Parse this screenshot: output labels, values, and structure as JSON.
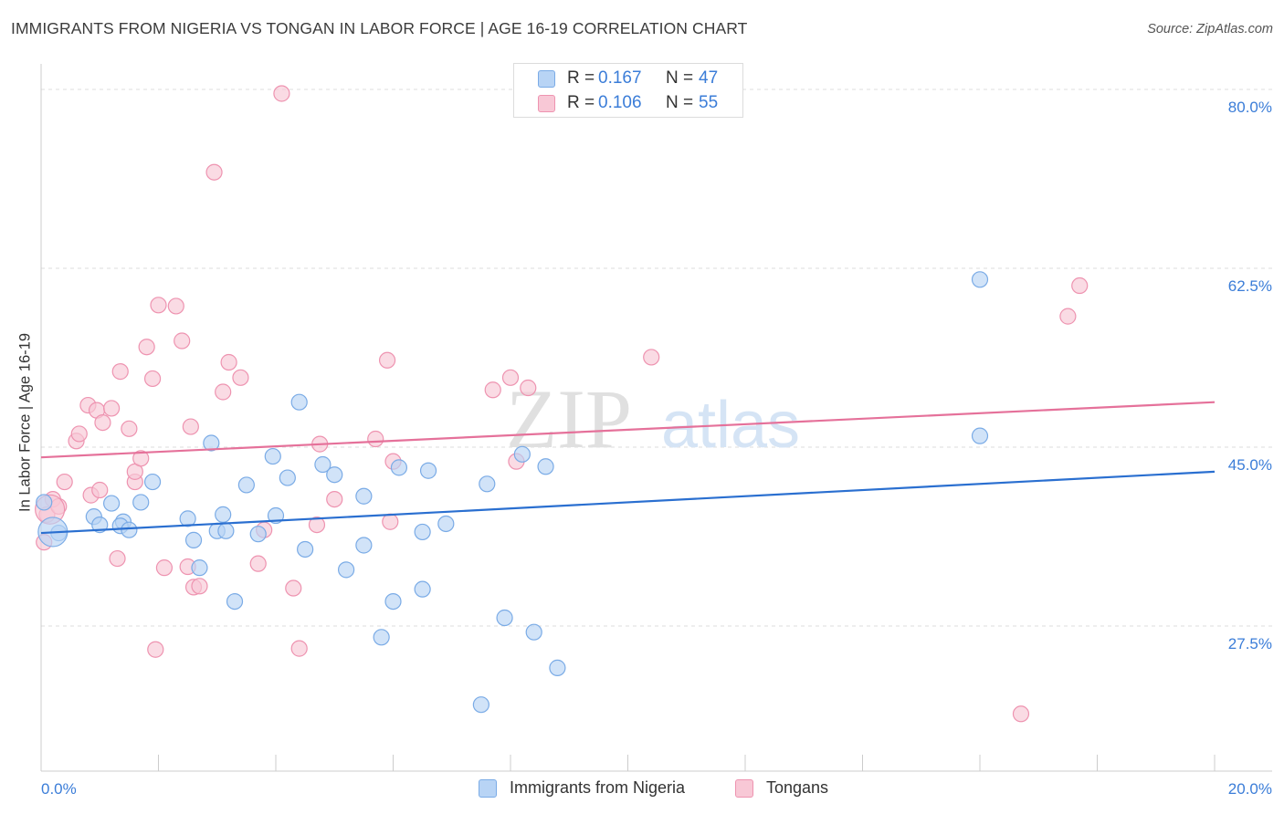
{
  "header": {
    "title": "IMMIGRANTS FROM NIGERIA VS TONGAN IN LABOR FORCE | AGE 16-19 CORRELATION CHART",
    "source": "Source: ZipAtlas.com"
  },
  "watermark": {
    "zip": "ZIP",
    "atlas": "atlas"
  },
  "legend": {
    "rows": [
      {
        "r_label": "R =",
        "r_value": "0.167",
        "n_label": "N =",
        "n_value": "47"
      },
      {
        "r_label": "R =",
        "r_value": "0.106",
        "n_label": "N =",
        "n_value": "55"
      }
    ]
  },
  "colors": {
    "blue_fill": "#b8d4f5",
    "blue_stroke": "#7aabe6",
    "blue_line": "#2a6fd0",
    "pink_fill": "#f8c8d6",
    "pink_stroke": "#ee93b0",
    "pink_line": "#e5719a",
    "tick_label": "#3b7dd8",
    "grid": "#dddddd"
  },
  "chart_data": {
    "type": "scatter",
    "title": "IMMIGRANTS FROM NIGERIA VS TONGAN IN LABOR FORCE | AGE 16-19 CORRELATION CHART",
    "xlabel": "",
    "ylabel": "In Labor Force | Age 16-19",
    "xlim": [
      0,
      20
    ],
    "ylim": [
      13.3,
      82.5
    ],
    "x_tick_labels": [
      "0.0%",
      "20.0%"
    ],
    "x_tick_values": [
      0,
      20
    ],
    "y_tick_labels": [
      "80.0%",
      "62.5%",
      "45.0%",
      "27.5%"
    ],
    "y_tick_values": [
      80.0,
      62.5,
      45.0,
      27.5
    ],
    "grid": "horizontal dashed",
    "legend_position": "top-center",
    "series": [
      {
        "name": "Immigrants from Nigeria",
        "color": "#b8d4f5",
        "r": 0.167,
        "n": 47,
        "trend": {
          "x": [
            0,
            20
          ],
          "y": [
            36.6,
            42.6
          ]
        },
        "points": [
          [
            0.05,
            39.6
          ],
          [
            0.3,
            36.6
          ],
          [
            0.9,
            38.2
          ],
          [
            1.0,
            37.4
          ],
          [
            1.4,
            37.7
          ],
          [
            1.2,
            39.5
          ],
          [
            1.35,
            37.3
          ],
          [
            1.5,
            36.9
          ],
          [
            1.7,
            39.6
          ],
          [
            1.9,
            41.6
          ],
          [
            2.5,
            38.0
          ],
          [
            2.9,
            45.4
          ],
          [
            2.6,
            35.9
          ],
          [
            2.7,
            33.2
          ],
          [
            3.1,
            38.4
          ],
          [
            3.0,
            36.8
          ],
          [
            3.15,
            36.8
          ],
          [
            3.3,
            29.9
          ],
          [
            3.5,
            41.3
          ],
          [
            3.7,
            36.5
          ],
          [
            3.95,
            44.1
          ],
          [
            4.0,
            38.3
          ],
          [
            4.2,
            42.0
          ],
          [
            4.4,
            49.4
          ],
          [
            4.5,
            35.0
          ],
          [
            4.8,
            43.3
          ],
          [
            5.0,
            42.3
          ],
          [
            5.2,
            33.0
          ],
          [
            5.5,
            35.4
          ],
          [
            5.5,
            40.2
          ],
          [
            5.8,
            26.4
          ],
          [
            6.0,
            29.9
          ],
          [
            6.1,
            43.0
          ],
          [
            6.5,
            31.1
          ],
          [
            6.5,
            36.7
          ],
          [
            6.6,
            42.7
          ],
          [
            6.9,
            37.5
          ],
          [
            7.5,
            19.8
          ],
          [
            7.6,
            41.4
          ],
          [
            7.9,
            28.3
          ],
          [
            8.2,
            44.3
          ],
          [
            8.4,
            26.9
          ],
          [
            8.6,
            43.1
          ],
          [
            8.8,
            23.4
          ],
          [
            16.0,
            46.1
          ],
          [
            16.0,
            61.4
          ],
          [
            0.2,
            36.7
          ]
        ]
      },
      {
        "name": "Tongans",
        "color": "#f8c8d6",
        "r": 0.106,
        "n": 55,
        "trend": {
          "x": [
            0,
            20
          ],
          "y": [
            44.0,
            49.4
          ]
        },
        "points": [
          [
            0.05,
            35.7
          ],
          [
            0.1,
            38.4
          ],
          [
            0.2,
            39.9
          ],
          [
            0.3,
            39.2
          ],
          [
            0.4,
            41.6
          ],
          [
            0.6,
            45.6
          ],
          [
            0.65,
            46.3
          ],
          [
            0.8,
            49.1
          ],
          [
            0.85,
            40.3
          ],
          [
            0.95,
            48.6
          ],
          [
            1.0,
            40.8
          ],
          [
            1.05,
            47.4
          ],
          [
            1.2,
            48.8
          ],
          [
            1.3,
            34.1
          ],
          [
            1.35,
            52.4
          ],
          [
            1.5,
            46.8
          ],
          [
            1.6,
            41.6
          ],
          [
            1.6,
            42.6
          ],
          [
            1.7,
            43.9
          ],
          [
            1.8,
            54.8
          ],
          [
            1.9,
            51.7
          ],
          [
            1.95,
            25.2
          ],
          [
            2.0,
            58.9
          ],
          [
            2.1,
            33.2
          ],
          [
            2.3,
            58.8
          ],
          [
            2.4,
            55.4
          ],
          [
            2.5,
            33.3
          ],
          [
            2.55,
            47.0
          ],
          [
            2.6,
            31.3
          ],
          [
            2.7,
            31.4
          ],
          [
            2.95,
            71.9
          ],
          [
            3.1,
            50.4
          ],
          [
            3.2,
            53.3
          ],
          [
            3.4,
            51.8
          ],
          [
            3.7,
            33.6
          ],
          [
            3.8,
            36.9
          ],
          [
            4.1,
            79.6
          ],
          [
            4.3,
            31.2
          ],
          [
            4.4,
            25.3
          ],
          [
            4.7,
            37.4
          ],
          [
            4.75,
            45.3
          ],
          [
            5.0,
            39.9
          ],
          [
            5.7,
            45.8
          ],
          [
            5.9,
            53.5
          ],
          [
            5.95,
            37.7
          ],
          [
            6.0,
            43.6
          ],
          [
            7.7,
            50.6
          ],
          [
            8.0,
            51.8
          ],
          [
            8.1,
            43.6
          ],
          [
            8.3,
            50.8
          ],
          [
            10.4,
            53.8
          ],
          [
            16.7,
            18.9
          ],
          [
            17.5,
            57.8
          ],
          [
            17.7,
            60.8
          ],
          [
            0.15,
            38.9
          ]
        ]
      }
    ]
  },
  "bottom_legend": {
    "items": [
      {
        "label": "Immigrants from Nigeria"
      },
      {
        "label": "Tongans"
      }
    ]
  }
}
